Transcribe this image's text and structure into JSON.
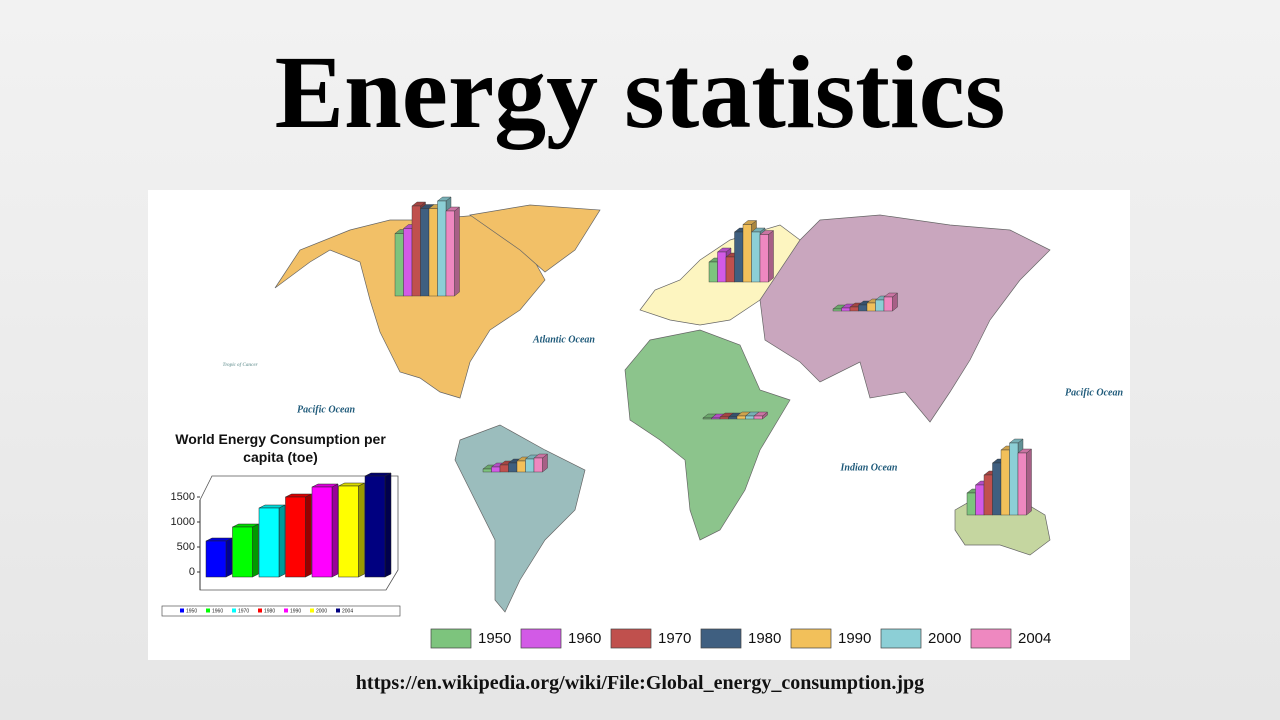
{
  "title": "Energy statistics",
  "url": "https://en.wikipedia.org/wiki/File:Global_energy_consumption.jpg",
  "map": {
    "ocean_labels": [
      "Atlantic Ocean",
      "Pacific Ocean",
      "Pacific Ocean",
      "Indian Ocean",
      "Tropic of Cancer"
    ]
  },
  "legend": [
    {
      "label": "1950",
      "color": "#7dc47d"
    },
    {
      "label": "1960",
      "color": "#d25ae6"
    },
    {
      "label": "1970",
      "color": "#c0504d"
    },
    {
      "label": "1980",
      "color": "#3f5f80"
    },
    {
      "label": "1990",
      "color": "#f2c05a"
    },
    {
      "label": "2000",
      "color": "#8ccfd6"
    },
    {
      "label": "2004",
      "color": "#ee88c0"
    }
  ],
  "regional_bars": [
    [
      5000,
      5400,
      7200,
      7000,
      7000,
      7600,
      6800
    ],
    [
      1600,
      2400,
      2000,
      4000,
      4600,
      4000,
      3800
    ],
    [
      160,
      240,
      320,
      480,
      640,
      880,
      1120
    ],
    [
      80,
      80,
      160,
      160,
      240,
      240,
      240
    ],
    [
      240,
      400,
      560,
      720,
      880,
      1040,
      1120
    ],
    [
      1760,
      2400,
      3200,
      4160,
      5200,
      5760,
      4960
    ]
  ],
  "chart_data": {
    "type": "bar",
    "title": "World Energy Consumption per capita (toe)",
    "categories": [
      "1950",
      "1960",
      "1970",
      "1980",
      "1990",
      "2000",
      "2004"
    ],
    "values": [
      620,
      900,
      1280,
      1500,
      1700,
      1720,
      1920
    ],
    "colors": [
      "#0000ff",
      "#00ff00",
      "#00ffff",
      "#ff0000",
      "#ff00ff",
      "#ffff00",
      "#000080"
    ],
    "ylim": [
      0,
      2000
    ],
    "yticks": [
      0,
      500,
      1000,
      1500
    ]
  }
}
